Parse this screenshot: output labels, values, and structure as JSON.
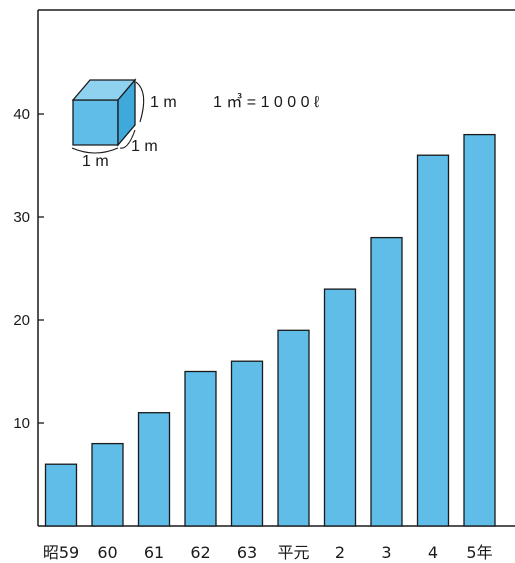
{
  "chart_data": {
    "type": "bar",
    "categories": [
      "昭59",
      "60",
      "61",
      "62",
      "63",
      "平元",
      "2",
      "3",
      "4",
      "5年"
    ],
    "values": [
      6,
      8,
      11,
      15,
      16,
      19,
      23,
      28,
      36,
      38
    ],
    "yticks": [
      "10",
      "20",
      "30",
      "40"
    ],
    "ylim": [
      0,
      50
    ],
    "bar_color": "#5fbde8",
    "bar_stroke": "#1a1a1a",
    "grid": false,
    "annotation": {
      "cube_height": "1 m",
      "cube_depth": "1 m",
      "cube_width": "1 m",
      "formula": "1 ㎥ = 1 0 0 0 ℓ"
    }
  }
}
